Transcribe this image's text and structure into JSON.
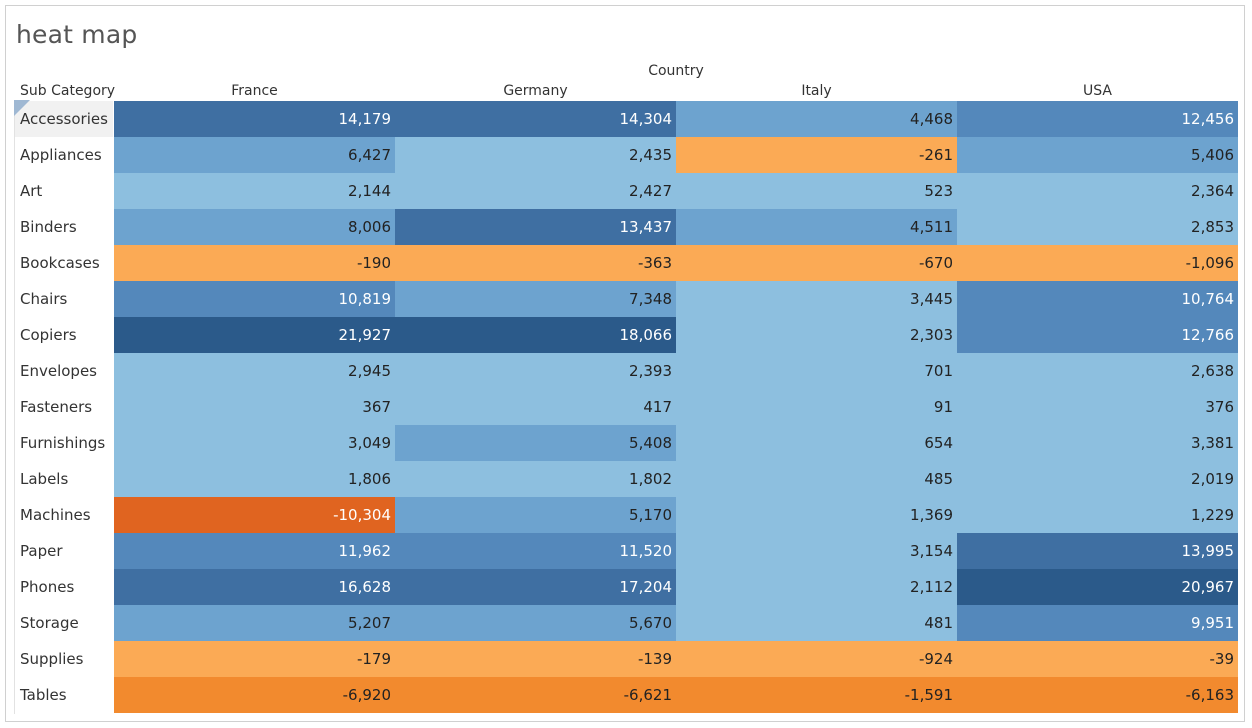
{
  "title": "heat map",
  "row_header": "Sub Category",
  "column_group_header": "Country",
  "colors": {
    "neg_xs": "#fbaa55",
    "neg_m": "#f28a2e",
    "neg_l": "#e06420",
    "pos_s": "#8dbfdf",
    "pos_m": "#6da3cf",
    "pos_l": "#5488bb",
    "pos_xl": "#3f6fa2",
    "pos_xxl": "#2b5a8a"
  },
  "chart_data": {
    "type": "heatmap",
    "title": "heat map",
    "xlabel": "Country",
    "ylabel": "Sub Category",
    "columns": [
      "France",
      "Germany",
      "Italy",
      "USA"
    ],
    "rows": [
      "Accessories",
      "Appliances",
      "Art",
      "Binders",
      "Bookcases",
      "Chairs",
      "Copiers",
      "Envelopes",
      "Fasteners",
      "Furnishings",
      "Labels",
      "Machines",
      "Paper",
      "Phones",
      "Storage",
      "Supplies",
      "Tables"
    ],
    "values": [
      [
        14179,
        14304,
        4468,
        12456
      ],
      [
        6427,
        2435,
        -261,
        5406
      ],
      [
        2144,
        2427,
        523,
        2364
      ],
      [
        8006,
        13437,
        4511,
        2853
      ],
      [
        -190,
        -363,
        -670,
        -1096
      ],
      [
        10819,
        7348,
        3445,
        10764
      ],
      [
        21927,
        18066,
        2303,
        12766
      ],
      [
        2945,
        2393,
        701,
        2638
      ],
      [
        367,
        417,
        91,
        376
      ],
      [
        3049,
        5408,
        654,
        3381
      ],
      [
        1806,
        1802,
        485,
        2019
      ],
      [
        -10304,
        5170,
        1369,
        1229
      ],
      [
        11962,
        11520,
        3154,
        13995
      ],
      [
        16628,
        17204,
        2112,
        20967
      ],
      [
        5207,
        5670,
        481,
        9951
      ],
      [
        -179,
        -139,
        -924,
        -39
      ],
      [
        -6920,
        -6621,
        -1591,
        -6163
      ]
    ],
    "labels": [
      [
        "14,179",
        "14,304",
        "4,468",
        "12,456"
      ],
      [
        "6,427",
        "2,435",
        "-261",
        "5,406"
      ],
      [
        "2,144",
        "2,427",
        "523",
        "2,364"
      ],
      [
        "8,006",
        "13,437",
        "4,511",
        "2,853"
      ],
      [
        "-190",
        "-363",
        "-670",
        "-1,096"
      ],
      [
        "10,819",
        "7,348",
        "3,445",
        "10,764"
      ],
      [
        "21,927",
        "18,066",
        "2,303",
        "12,766"
      ],
      [
        "2,945",
        "2,393",
        "701",
        "2,638"
      ],
      [
        "367",
        "417",
        "91",
        "376"
      ],
      [
        "3,049",
        "5,408",
        "654",
        "3,381"
      ],
      [
        "1,806",
        "1,802",
        "485",
        "2,019"
      ],
      [
        "-10,304",
        "5,170",
        "1,369",
        "1,229"
      ],
      [
        "11,962",
        "11,520",
        "3,154",
        "13,995"
      ],
      [
        "16,628",
        "17,204",
        "2,112",
        "20,967"
      ],
      [
        "5,207",
        "5,670",
        "481",
        "9,951"
      ],
      [
        "-179",
        "-139",
        "-924",
        "-39"
      ],
      [
        "-6,920",
        "-6,621",
        "-1,591",
        "-6,163"
      ]
    ],
    "selected_row": "Accessories"
  }
}
